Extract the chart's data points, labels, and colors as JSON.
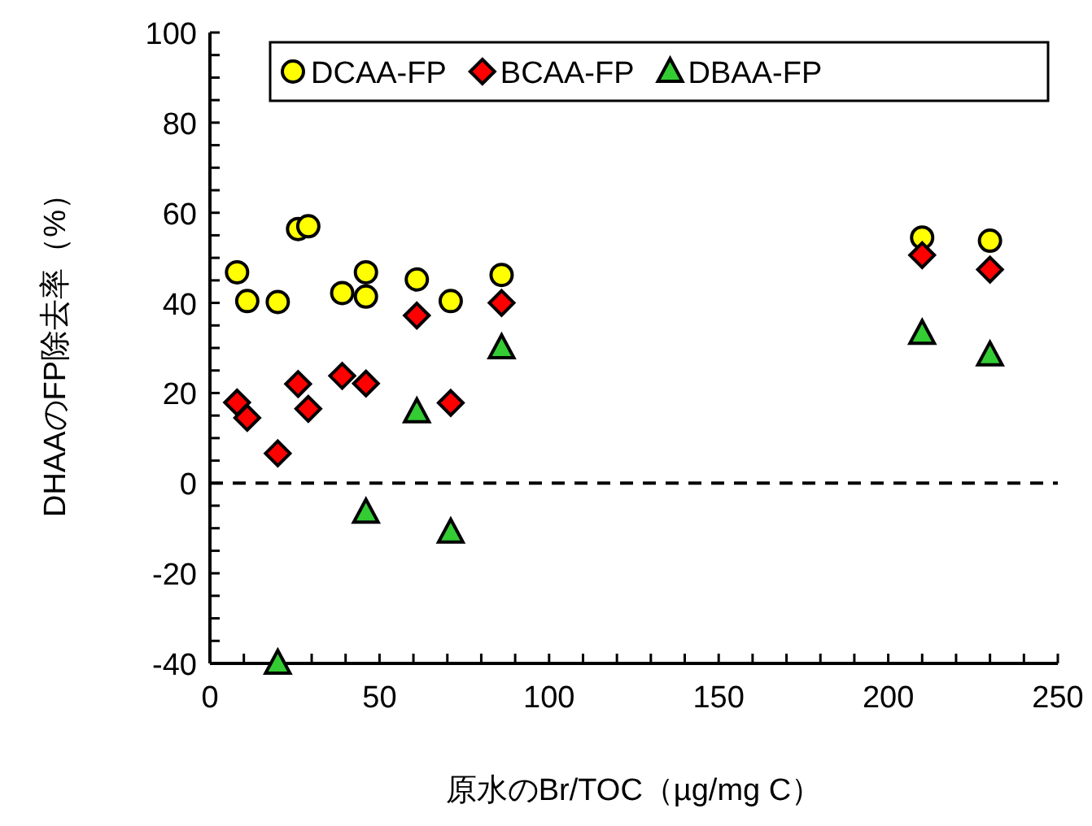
{
  "chart_data": {
    "type": "scatter",
    "xlabel": "原水のBr/TOC（µg/mg C）",
    "ylabel": "DHAAのFP除去率（%）",
    "xlim": [
      0,
      250
    ],
    "ylim": [
      -40,
      100
    ],
    "xticks": [
      0,
      50,
      100,
      150,
      200,
      250
    ],
    "yticks": [
      -40,
      -20,
      0,
      20,
      40,
      60,
      80,
      100
    ],
    "legend": "top",
    "grid": false,
    "ref_lines": [
      {
        "axis": "y",
        "value": 0,
        "line_style": "dashed",
        "color": "#000000"
      }
    ],
    "series": [
      {
        "name": "DCAA-FP",
        "color": "#ffff00",
        "marker": "circle",
        "x": [
          8,
          11,
          20,
          26,
          29,
          39,
          46,
          46,
          61,
          71,
          86,
          210,
          230
        ],
        "values": [
          46.8,
          40.4,
          40.2,
          56.4,
          57,
          42.2,
          46.8,
          41.4,
          45.2,
          40.4,
          46.2,
          54.5,
          53.8
        ]
      },
      {
        "name": "BCAA-FP",
        "color": "#ff0000",
        "marker": "diamond",
        "x": [
          8,
          11,
          20,
          26,
          29,
          39,
          46,
          61,
          71,
          86,
          210,
          230
        ],
        "values": [
          17.9,
          14.5,
          6.6,
          22,
          16.5,
          23.8,
          22.1,
          37.2,
          17.8,
          40,
          50.6,
          47.4
        ]
      },
      {
        "name": "DBAA-FP",
        "color": "#33cc33",
        "marker": "triangle",
        "x": [
          20,
          46,
          61,
          71,
          86,
          210,
          230
        ],
        "values": [
          -40,
          -6.5,
          15.8,
          -10.9,
          30,
          33.2,
          28.4
        ]
      }
    ]
  }
}
